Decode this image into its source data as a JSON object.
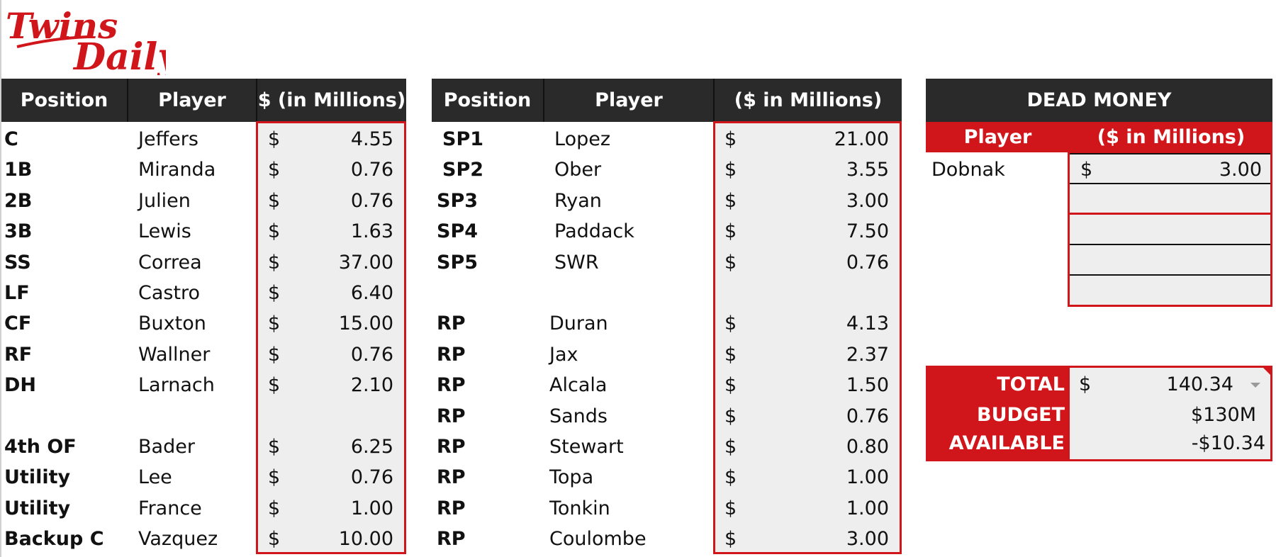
{
  "brand": {
    "logo_text_1": "Twins",
    "logo_text_2": "Daily",
    "accent_color": "#d0161a",
    "header_color": "#2a2a2a",
    "cell_fill": "#eeeeee"
  },
  "hitters": {
    "headers": {
      "position": "Position",
      "player": "Player",
      "money": "$ (in Millions)"
    },
    "rows": [
      {
        "position": "C",
        "player": "Jeffers",
        "currency": "$",
        "amount": "4.55"
      },
      {
        "position": "1B",
        "player": "Miranda",
        "currency": "$",
        "amount": "0.76"
      },
      {
        "position": "2B",
        "player": "Julien",
        "currency": "$",
        "amount": "0.76"
      },
      {
        "position": "3B",
        "player": "Lewis",
        "currency": "$",
        "amount": "1.63"
      },
      {
        "position": "SS",
        "player": "Correa",
        "currency": "$",
        "amount": "37.00"
      },
      {
        "position": "LF",
        "player": "Castro",
        "currency": "$",
        "amount": "6.40"
      },
      {
        "position": "CF",
        "player": "Buxton",
        "currency": "$",
        "amount": "15.00"
      },
      {
        "position": "RF",
        "player": "Wallner",
        "currency": "$",
        "amount": "0.76"
      },
      {
        "position": "DH",
        "player": "Larnach",
        "currency": "$",
        "amount": "2.10"
      },
      {
        "position": "",
        "player": "",
        "currency": "",
        "amount": ""
      },
      {
        "position": "4th OF",
        "player": "Bader",
        "currency": "$",
        "amount": "6.25"
      },
      {
        "position": "Utility",
        "player": "Lee",
        "currency": "$",
        "amount": "0.76"
      },
      {
        "position": "Utility",
        "player": "France",
        "currency": "$",
        "amount": "1.00"
      },
      {
        "position": "Backup C",
        "player": "Vazquez",
        "currency": "$",
        "amount": "10.00"
      }
    ]
  },
  "pitchers": {
    "headers": {
      "position": "Position",
      "player": "Player",
      "money": "($ in Millions)"
    },
    "rows": [
      {
        "position": "SP1",
        "player": "Lopez",
        "currency": "$",
        "amount": "21.00"
      },
      {
        "position": "SP2",
        "player": "Ober",
        "currency": "$",
        "amount": "3.55"
      },
      {
        "position": "SP3",
        "player": "Ryan",
        "currency": "$",
        "amount": "3.00"
      },
      {
        "position": "SP4",
        "player": "Paddack",
        "currency": "$",
        "amount": "7.50"
      },
      {
        "position": "SP5",
        "player": "SWR",
        "currency": "$",
        "amount": "0.76"
      },
      {
        "position": "",
        "player": "",
        "currency": "",
        "amount": ""
      },
      {
        "position": "RP",
        "player": "Duran",
        "currency": "$",
        "amount": "4.13"
      },
      {
        "position": "RP",
        "player": "Jax",
        "currency": "$",
        "amount": "2.37"
      },
      {
        "position": "RP",
        "player": "Alcala",
        "currency": "$",
        "amount": "1.50"
      },
      {
        "position": "RP",
        "player": "Sands",
        "currency": "$",
        "amount": "0.76"
      },
      {
        "position": "RP",
        "player": "Stewart",
        "currency": "$",
        "amount": "0.80"
      },
      {
        "position": "RP",
        "player": "Topa",
        "currency": "$",
        "amount": "1.00"
      },
      {
        "position": "RP",
        "player": "Tonkin",
        "currency": "$",
        "amount": "1.00"
      },
      {
        "position": "RP",
        "player": "Coulombe",
        "currency": "$",
        "amount": "3.00"
      }
    ]
  },
  "dead_money": {
    "title": "DEAD MONEY",
    "headers": {
      "player": "Player",
      "money": "($ in Millions)"
    },
    "rows": [
      {
        "player": "Dobnak",
        "currency": "$",
        "amount": "3.00"
      },
      {
        "player": "",
        "currency": "",
        "amount": ""
      },
      {
        "player": "",
        "currency": "",
        "amount": ""
      },
      {
        "player": "",
        "currency": "",
        "amount": ""
      },
      {
        "player": "",
        "currency": "",
        "amount": ""
      }
    ]
  },
  "summary": {
    "total_label": "TOTAL",
    "total_currency": "$",
    "total_value": "140.34",
    "budget_label": "BUDGET",
    "budget_value": "$130M",
    "available_label": "AVAILABLE",
    "available_value": "-$10.34"
  }
}
